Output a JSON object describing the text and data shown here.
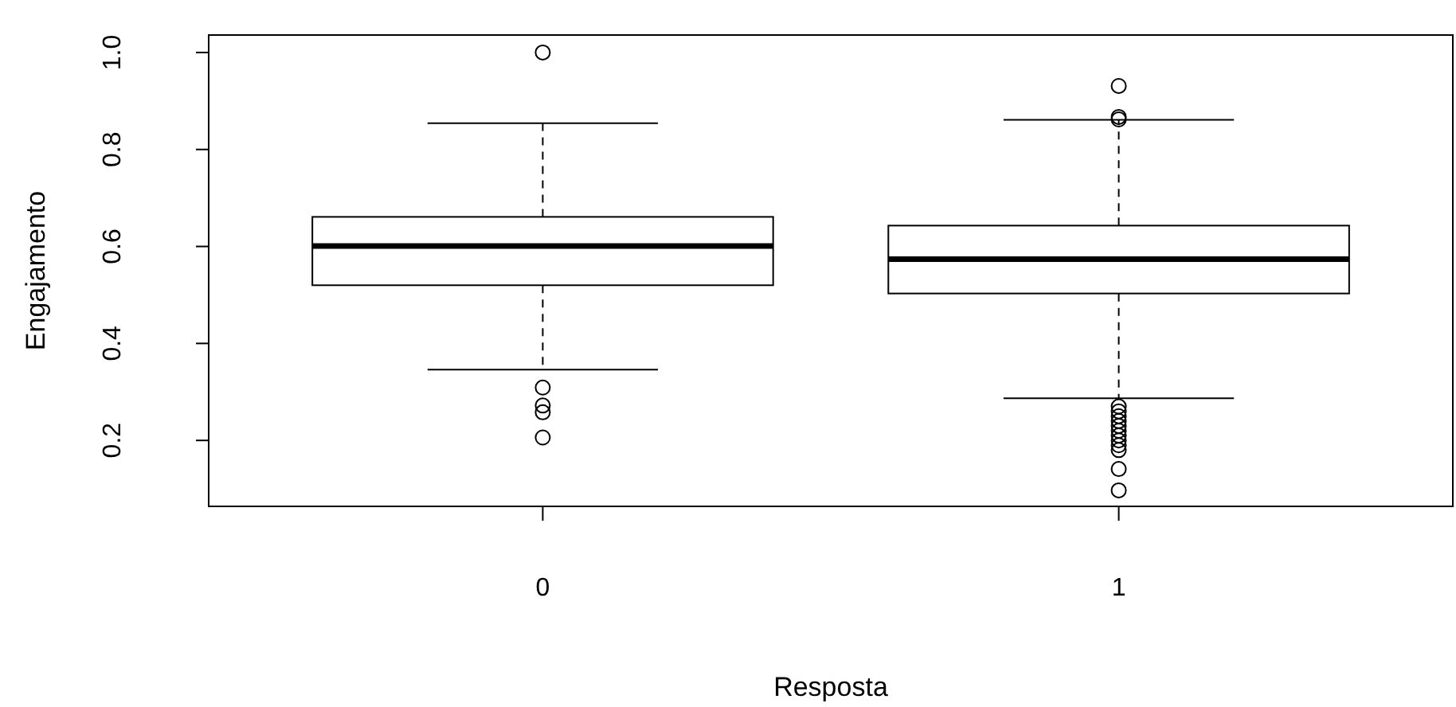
{
  "chart_data": {
    "type": "box",
    "xlabel": "Resposta",
    "ylabel": "Engajamento",
    "categories": [
      "0",
      "1"
    ],
    "boxes": [
      {
        "low": 0.346,
        "q1": 0.52,
        "median": 0.601,
        "q3": 0.661,
        "high": 0.854,
        "outliers": [
          1.0,
          0.309,
          0.272,
          0.258,
          0.206
        ]
      },
      {
        "low": 0.287,
        "q1": 0.503,
        "median": 0.574,
        "q3": 0.643,
        "high": 0.861,
        "outliers": [
          0.931,
          0.867,
          0.862,
          0.27,
          0.26,
          0.25,
          0.24,
          0.23,
          0.22,
          0.21,
          0.2,
          0.19,
          0.18,
          0.141,
          0.097
        ]
      }
    ],
    "ylim": [
      0.064,
      1.036
    ],
    "yticks": [
      {
        "value": 0.2,
        "label": "0.2"
      },
      {
        "value": 0.4,
        "label": "0.4"
      },
      {
        "value": 0.6,
        "label": "0.6"
      },
      {
        "value": 0.8,
        "label": "0.8"
      },
      {
        "value": 1.0,
        "label": "1.0"
      }
    ],
    "grid": false
  }
}
